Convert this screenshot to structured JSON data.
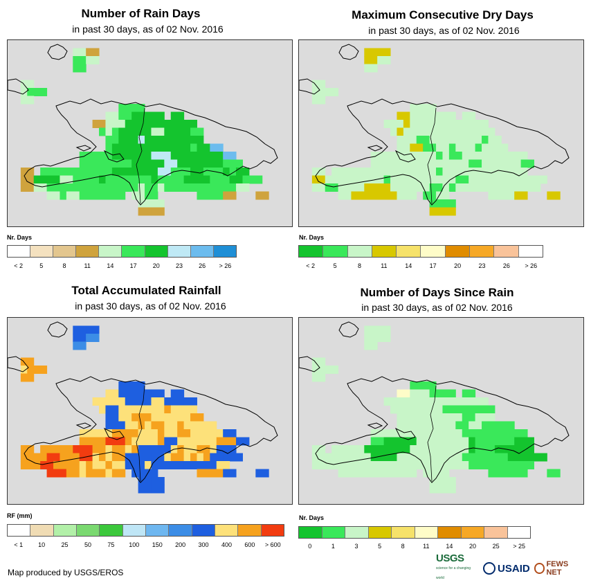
{
  "date_label": "02 Nov. 2016",
  "panels": [
    {
      "id": "rain_days",
      "title": "Number of Rain Days",
      "subtitle": "in past 30 days, as of 02 Nov. 2016",
      "legend_title": "Nr. Days",
      "legend_labels": [
        "< 2",
        "5",
        "8",
        "11",
        "14",
        "17",
        "20",
        "23",
        "26",
        "> 26"
      ],
      "legend_colors": [
        "#ffffff",
        "#f4e1bf",
        "#e3c68e",
        "#cfa33d",
        "#c8f5c8",
        "#3ae85a",
        "#14c42e",
        "#bfe9f5",
        "#6cbcee",
        "#1f8fd6"
      ],
      "grid": [
        "......................................",
        "..........4.3.........................",
        "..........5.4.........................",
        "..........5...........................",
        "......................................",
        "..4.......................................",
        "..455...................................",
        "..4.....................................",
        ".................5.5.....................",
        "...............4.5.66.6..6...............",
        ".............3.44466666.6.66..............",
        "..............54566.6644666.5.............",
        "...............55666766666666.............",
        "...............56.666666666.56.8.........",
        "...........5.5.56.6666777666666.68........",
        "...........5.5.55.566.6677666.66.55.......",
        "..3..5.5.55555.56.666.67755566555656......",
        "..3.6.6.4.5.55655.5.5.6555.66665556.55....",
        "..3.4455555555555.5.45545.55.55555.4......",
        "......44544555.55..4.5.......5.5.3....3...",
        "....................4.4...................",
        "....................3.3...................",
        "..........................................",
        ".........................................."
      ]
    },
    {
      "id": "max_dry_days",
      "title": "Maximum Consecutive Dry Days",
      "subtitle": "in past 30 days, as of 02 Nov. 2016",
      "legend_title": "Nr. Days",
      "legend_labels": [
        "< 2",
        "5",
        "8",
        "11",
        "14",
        "17",
        "20",
        "23",
        "26",
        "> 26"
      ],
      "legend_colors": [
        "#14c42e",
        "#3ae85a",
        "#c8f5c8",
        "#d8c800",
        "#f6e26a",
        "#fefcc8",
        "#e08c00",
        "#f6a826",
        "#f9c39a",
        "#ffffff"
      ],
      "grid": [
        "......................................",
        "..........3.3.........................",
        "..........3.2.........................",
        "..........2...........................",
        "......................................",
        "..2.......................................",
        "..222...................................",
        "..2.....................................",
        ".................2.2.....................",
        "...............3.2.22.2..2...............",
        ".............2.23222222.2.22..............",
        "..............23222.2222222.2.............",
        "...............222112222222212............",
        "...............223.1122122.12.2.........",
        "...........2.2.22.2221211222222.22........",
        "...........2.2.22.22222222112.22.21.......",
        "..2..2.2.22222.22.2221222222222222......",
        "..3.2.2.2.222122.2.2.2221.22222222.22....",
        "..2.1122223333222.2.11212.22.22222.2......",
        "......22333333.22..1.2.......2.2.3....3...",
        "....................1.1...................",
        "....................3.3...................",
        "..........................................",
        ".........................................."
      ]
    },
    {
      "id": "total_rainfall",
      "title": "Total Accumulated Rainfall",
      "subtitle": "in past 30 days, as of 02 Nov. 2016",
      "legend_title": "RF (mm)",
      "legend_labels": [
        "< 1",
        "10",
        "25",
        "50",
        "75",
        "100",
        "150",
        "200",
        "300",
        "400",
        "600",
        "> 600"
      ],
      "legend_colors": [
        "#ffffff",
        "#f0dcb4",
        "#b2f0a8",
        "#7ad970",
        "#3cc83c",
        "#bfe6f6",
        "#6eb7f0",
        "#3c8de6",
        "#1e5fe0",
        "#fde17a",
        "#f6a21e",
        "#f23c10"
      ],
      "grid": [
        "......................................",
        "..........8.8.........................",
        "..........8.7.........................",
        "..........7...........................",
        "......................................",
        "..A.......................................",
        "..9AA...................................",
        "..A.....................................",
        ".................8.8.....................",
        "...............9.8.88.8..8...............",
        ".............9.99988889.8.88..............",
        "..............9889999999A9.9.............",
        "...............8899AAA999999A.............",
        "...............88.99A9AA99A99.9.........",
        "...........9.9.9A.AA999A99AA999.98........",
        "...........A.A.BB.A9999A889999.9A.A8......",
        "..A..A.A.ABBBA.9A.9A88.889A99AA988......",
        "..A.A.B.A.ABB9A9A.8.8.889A.9A9A8.88....",
        "..A.ABBAAAA9A99A9.8.8988.8888.8.9......",
        "......BBBAA9AA.9A..8.8.......A.A.8....8...",
        "....................8.8...................",
        "....................8.8...................",
        "..........................................",
        ".........................................."
      ]
    },
    {
      "id": "days_since_rain",
      "title": "Number of Days Since Rain",
      "subtitle": "in past 30 days, as of 02 Nov. 2016",
      "legend_title": "Nr. Days",
      "legend_labels": [
        "0",
        "1",
        "3",
        "5",
        "8",
        "11",
        "14",
        "20",
        "25",
        "> 25"
      ],
      "legend_colors": [
        "#14c42e",
        "#3ae85a",
        "#c8f5c8",
        "#d8c800",
        "#f6e26a",
        "#fefcc8",
        "#e08c00",
        "#f6a826",
        "#f9c39a",
        "#ffffff"
      ],
      "grid": [
        "......................................",
        "..........2.2.........................",
        "..........2.2.........................",
        "..........2...........................",
        "......................................",
        "..2.......................................",
        "..222...................................",
        "..2.....................................",
        ".................1.1.....................",
        "...............5.2.21.1..1...............",
        ".............2.22222222.2.22..............",
        "..............22222.2211111.1.............",
        "...............22222222221122.............",
        "...............222.22222112.11.1.........",
        "...........2.2.22.2222222111111.11........",
        "...........1.0.00.22222222011.11.00.......",
        "..2..2.2.2000000.22.222222011100000......",
        "..2.2.2.2.2000022.2.2.2221.1111100.00....",
        "..2.2222222222222.2.22222.11.1111.1......",
        "......22222222.22..2.2.......1.1.1....1...",
        "....................2.2...................",
        "....................2.2...................",
        "..........................................",
        ".........................................."
      ]
    }
  ],
  "credit": "Map produced by USGS/EROS",
  "logos": {
    "usgs": "USGS",
    "usgs_tagline": "science for a changing world",
    "usaid": "USAID",
    "fewsnet": "FEWS NET"
  }
}
